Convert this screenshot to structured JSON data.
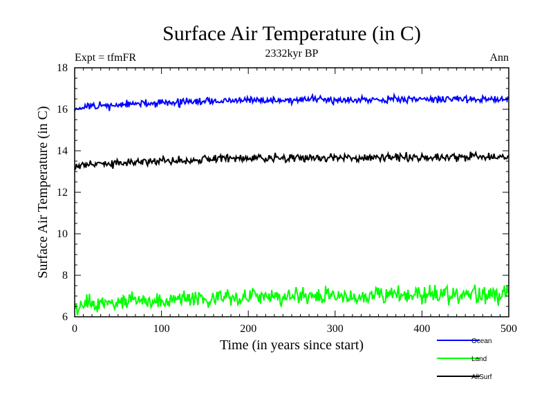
{
  "chart_data": {
    "type": "line",
    "title": "Surface Air Temperature (in C)",
    "subtitle": "2332kyr BP",
    "left_label": "Expt = tfmFR",
    "right_label": "Ann",
    "xlabel": "Time (in years since start)",
    "ylabel": "Surface Air Temperature (in C)",
    "xlim": [
      0,
      500
    ],
    "ylim": [
      6,
      18
    ],
    "xticks": [
      0,
      100,
      200,
      300,
      400,
      500
    ],
    "yticks": [
      6,
      8,
      10,
      12,
      14,
      16,
      18
    ],
    "legend_position": "bottom-right",
    "series": [
      {
        "name": "Ocean",
        "color": "#0000ff",
        "start": 16.05,
        "end": 16.5,
        "noise": 0.09,
        "seed": 11
      },
      {
        "name": "Land",
        "color": "#00ff00",
        "start": 6.55,
        "end": 7.05,
        "noise": 0.2,
        "seed": 29
      },
      {
        "name": "AllSurf",
        "color": "#000000",
        "start": 13.25,
        "end": 13.7,
        "noise": 0.1,
        "seed": 47
      }
    ]
  }
}
